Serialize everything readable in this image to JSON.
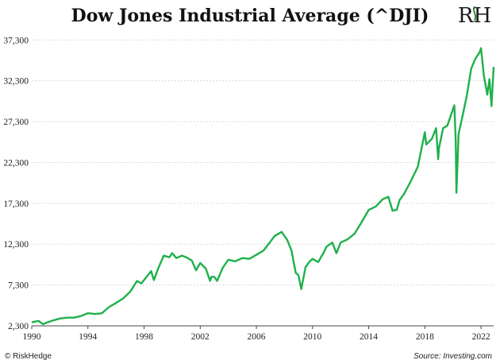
{
  "chart_data": {
    "type": "line",
    "title": "Dow Jones Industrial Average (^DJI)",
    "xlabel": "",
    "ylabel": "",
    "xlim": [
      1990,
      2022.9
    ],
    "ylim": [
      2300,
      38300
    ],
    "y_ticks": [
      2300,
      7300,
      12300,
      17300,
      22300,
      27300,
      32300,
      37300
    ],
    "y_tick_labels": [
      "2,300",
      "7,300",
      "12,300",
      "17,300",
      "22,300",
      "27,300",
      "32,300",
      "37,300"
    ],
    "x_ticks": [
      1990,
      1994,
      1998,
      2002,
      2006,
      2010,
      2014,
      2018,
      2022
    ],
    "x_tick_labels": [
      "1990",
      "1994",
      "1998",
      "2002",
      "2006",
      "2010",
      "2014",
      "2018",
      "2022"
    ],
    "grid": "horizontal",
    "series": [
      {
        "color": "#1fb04b",
        "x": [
          1990.0,
          1990.5,
          1990.8,
          1991.0,
          1991.5,
          1992.0,
          1992.5,
          1993.0,
          1993.5,
          1994.0,
          1994.5,
          1995.0,
          1995.5,
          1996.0,
          1996.5,
          1997.0,
          1997.5,
          1997.8,
          1998.0,
          1998.5,
          1998.7,
          1999.0,
          1999.4,
          1999.8,
          2000.0,
          2000.3,
          2000.7,
          2001.0,
          2001.4,
          2001.7,
          2002.0,
          2002.4,
          2002.7,
          2002.8,
          2003.0,
          2003.2,
          2003.6,
          2004.0,
          2004.5,
          2005.0,
          2005.5,
          2006.0,
          2006.5,
          2007.0,
          2007.3,
          2007.8,
          2008.2,
          2008.5,
          2008.8,
          2009.0,
          2009.2,
          2009.5,
          2009.8,
          2010.0,
          2010.4,
          2010.8,
          2011.0,
          2011.4,
          2011.7,
          2012.0,
          2012.5,
          2013.0,
          2013.5,
          2014.0,
          2014.5,
          2015.0,
          2015.4,
          2015.7,
          2016.0,
          2016.2,
          2016.5,
          2017.0,
          2017.5,
          2018.0,
          2018.1,
          2018.5,
          2018.8,
          2018.95,
          2019.0,
          2019.3,
          2019.6,
          2020.0,
          2020.1,
          2020.2,
          2020.25,
          2020.4,
          2020.7,
          2021.0,
          2021.3,
          2021.6,
          2021.9,
          2022.0,
          2022.2,
          2022.4,
          2022.45,
          2022.6,
          2022.75,
          2022.9
        ],
        "y": [
          2750,
          2900,
          2500,
          2650,
          2950,
          3200,
          3300,
          3300,
          3500,
          3850,
          3750,
          3850,
          4600,
          5100,
          5650,
          6450,
          7800,
          7500,
          7900,
          9000,
          7900,
          9300,
          10900,
          10700,
          11200,
          10600,
          10900,
          10700,
          10300,
          9100,
          10000,
          9300,
          7800,
          8300,
          8300,
          7800,
          9400,
          10400,
          10200,
          10600,
          10500,
          11000,
          11500,
          12600,
          13300,
          13800,
          12800,
          11500,
          8800,
          8500,
          6800,
          9500,
          10200,
          10500,
          10100,
          11300,
          12000,
          12500,
          11200,
          12500,
          12900,
          13600,
          15000,
          16500,
          16900,
          17800,
          18100,
          16400,
          16500,
          17700,
          18400,
          20000,
          21800,
          26000,
          24500,
          25200,
          26500,
          22700,
          24000,
          26500,
          26800,
          28800,
          29300,
          25000,
          18600,
          25800,
          28100,
          30600,
          33800,
          35000,
          35800,
          36300,
          33000,
          31000,
          30600,
          32500,
          29200,
          34000
        ]
      }
    ]
  },
  "logo_text": "RH",
  "footer": {
    "left": "© RiskHedge",
    "right": "Source: Investing.com"
  }
}
